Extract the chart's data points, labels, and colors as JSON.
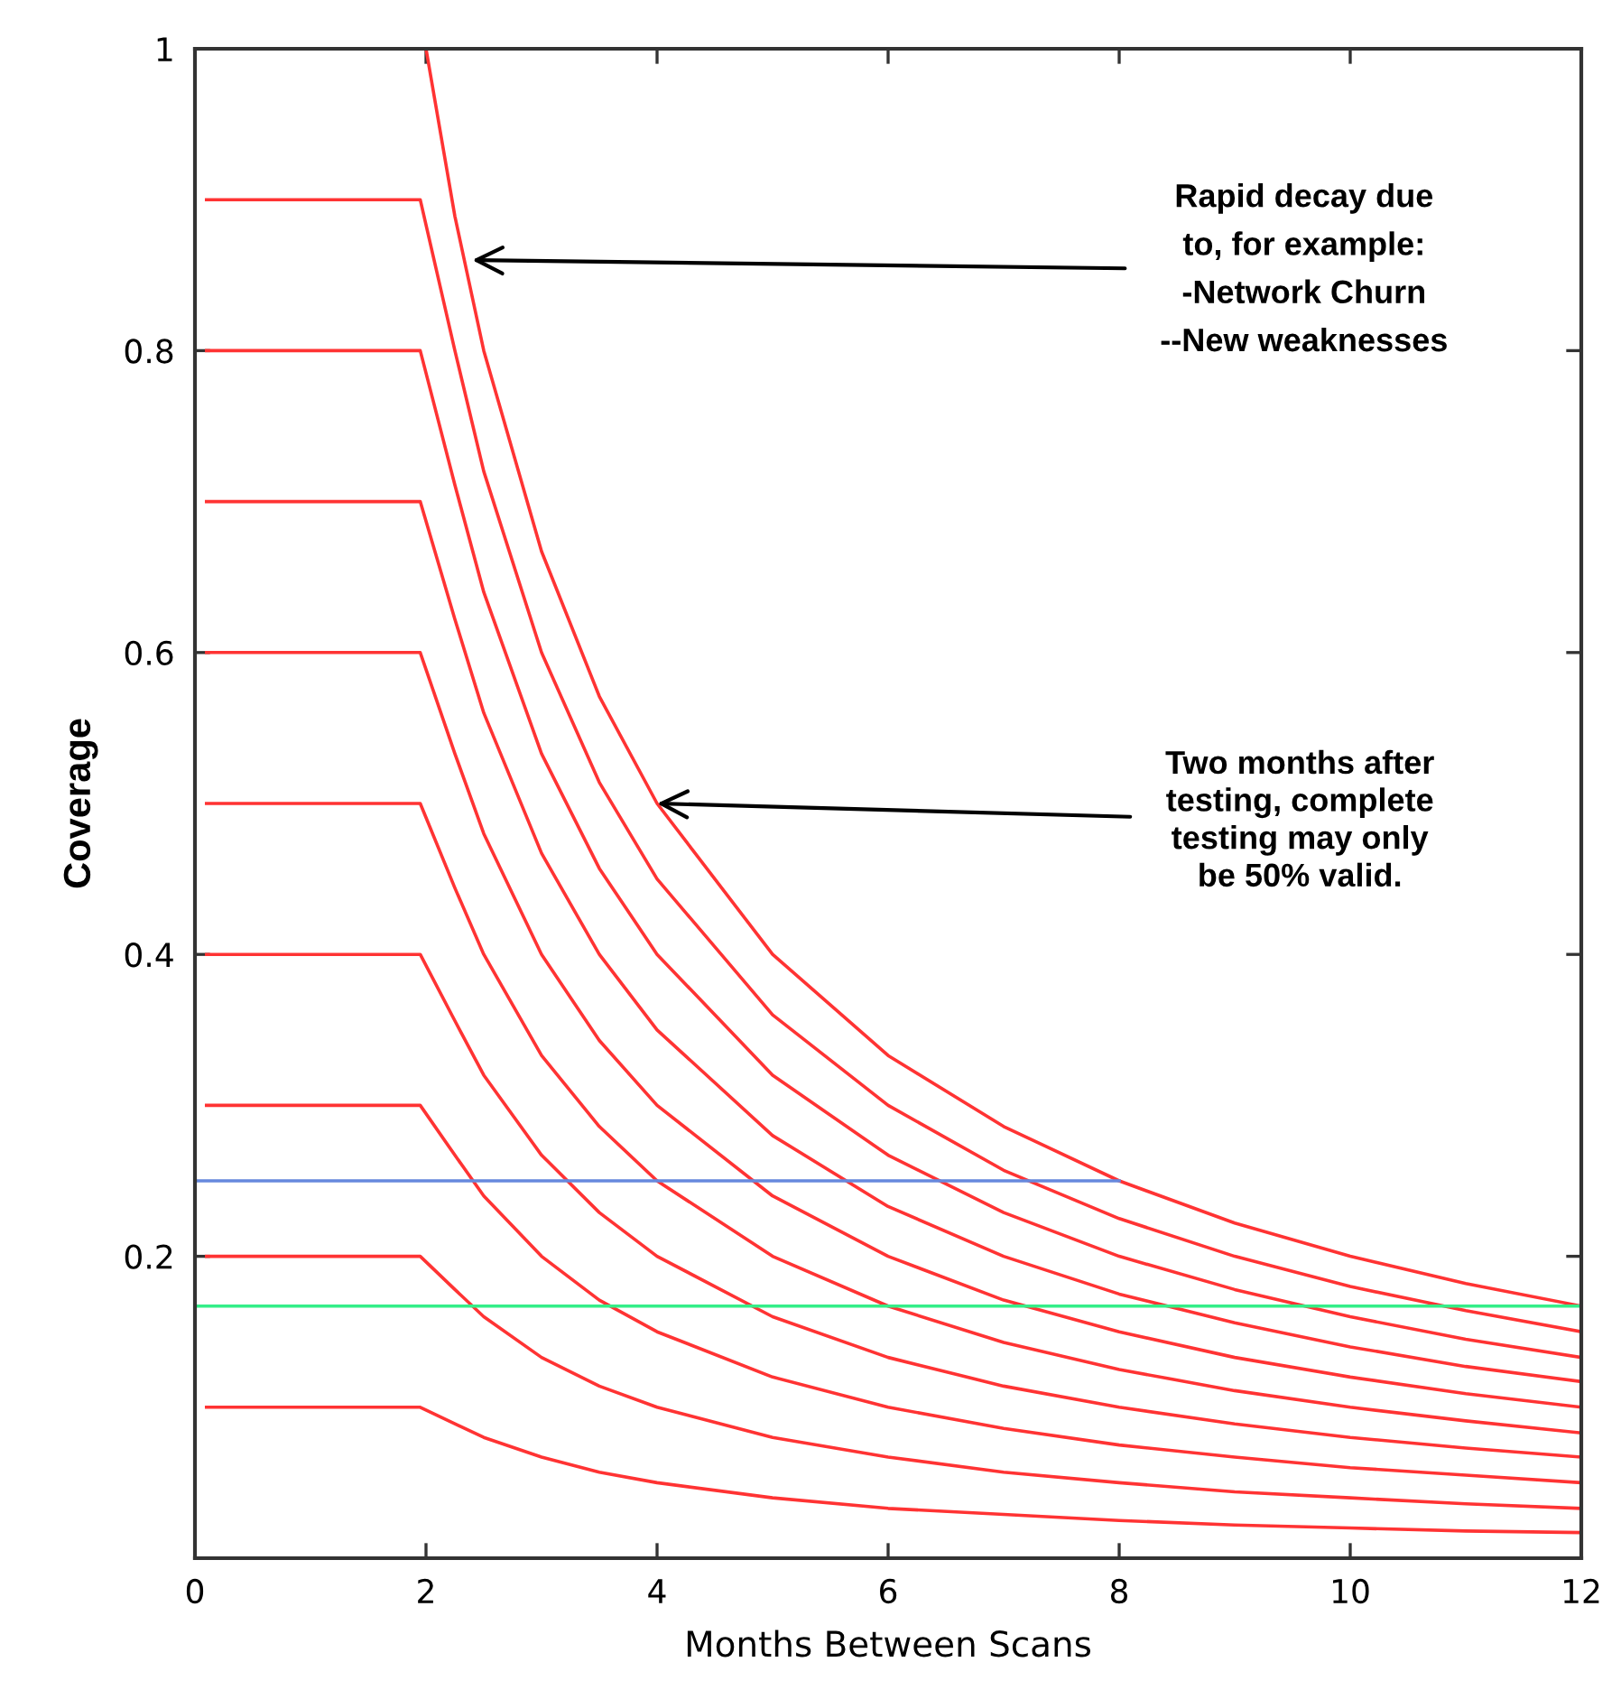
{
  "chart_data": {
    "type": "line",
    "xlabel": "Months Between Scans",
    "ylabel": "Coverage",
    "xlim": [
      0,
      12
    ],
    "ylim": [
      0,
      1
    ],
    "xticks": [
      0,
      2,
      4,
      6,
      8,
      10,
      12
    ],
    "yticks": [
      0.2,
      0.4,
      0.6,
      0.8,
      1
    ],
    "x": [
      0.1,
      1.95,
      2.25,
      2.5,
      3,
      3.5,
      4,
      5,
      6,
      7,
      8,
      9,
      10,
      11,
      12
    ],
    "series": [
      {
        "color": "#ff3333",
        "values": [
          0.1,
          0.1,
          0.089,
          0.08,
          0.067,
          0.057,
          0.05,
          0.04,
          0.033,
          0.029,
          0.025,
          0.022,
          0.02,
          0.018,
          0.017
        ]
      },
      {
        "color": "#ff3333",
        "values": [
          0.2,
          0.2,
          0.178,
          0.16,
          0.133,
          0.114,
          0.1,
          0.08,
          0.067,
          0.057,
          0.05,
          0.044,
          0.04,
          0.036,
          0.033
        ]
      },
      {
        "color": "#ff3333",
        "values": [
          0.3,
          0.3,
          0.267,
          0.24,
          0.2,
          0.171,
          0.15,
          0.12,
          0.1,
          0.086,
          0.075,
          0.067,
          0.06,
          0.055,
          0.05
        ]
      },
      {
        "color": "#ff3333",
        "values": [
          0.4,
          0.4,
          0.356,
          0.32,
          0.267,
          0.229,
          0.2,
          0.16,
          0.133,
          0.114,
          0.1,
          0.089,
          0.08,
          0.073,
          0.067
        ]
      },
      {
        "color": "#ff3333",
        "values": [
          0.5,
          0.5,
          0.444,
          0.4,
          0.333,
          0.286,
          0.25,
          0.2,
          0.167,
          0.143,
          0.125,
          0.111,
          0.1,
          0.091,
          0.083
        ]
      },
      {
        "color": "#ff3333",
        "values": [
          0.6,
          0.6,
          0.533,
          0.48,
          0.4,
          0.343,
          0.3,
          0.24,
          0.2,
          0.171,
          0.15,
          0.133,
          0.12,
          0.109,
          0.1
        ]
      },
      {
        "color": "#ff3333",
        "values": [
          0.7,
          0.7,
          0.622,
          0.56,
          0.467,
          0.4,
          0.35,
          0.28,
          0.233,
          0.2,
          0.175,
          0.156,
          0.14,
          0.127,
          0.117
        ]
      },
      {
        "color": "#ff3333",
        "values": [
          0.8,
          0.8,
          0.711,
          0.64,
          0.533,
          0.457,
          0.4,
          0.32,
          0.267,
          0.229,
          0.2,
          0.178,
          0.16,
          0.145,
          0.133
        ]
      },
      {
        "color": "#ff3333",
        "values": [
          0.9,
          0.9,
          0.8,
          0.72,
          0.6,
          0.514,
          0.45,
          0.36,
          0.3,
          0.257,
          0.225,
          0.2,
          0.18,
          0.164,
          0.15
        ]
      },
      {
        "color": "#ff3333",
        "x": [
          2,
          2.25,
          2.5,
          3,
          3.5,
          4,
          5,
          6,
          7,
          8,
          9,
          10,
          11,
          12
        ],
        "values": [
          1,
          0.889,
          0.8,
          0.667,
          0.571,
          0.5,
          0.4,
          0.333,
          0.286,
          0.25,
          0.222,
          0.2,
          0.182,
          0.167
        ]
      },
      {
        "color": "#6688dd",
        "x": [
          0,
          8
        ],
        "values": [
          0.25,
          0.25
        ]
      },
      {
        "color": "#33ee88",
        "x": [
          0,
          12
        ],
        "values": [
          0.167,
          0.167
        ]
      }
    ],
    "annotations": [
      {
        "text": "Rapid decay due\nto, for example:\n-Network Churn\n--New weaknesses",
        "x": 2.4,
        "y": 0.86
      },
      {
        "text": "Two months after\ntesting, complete\ntesting may only\nbe 50% valid.",
        "x": 4,
        "y": 0.5
      }
    ]
  }
}
